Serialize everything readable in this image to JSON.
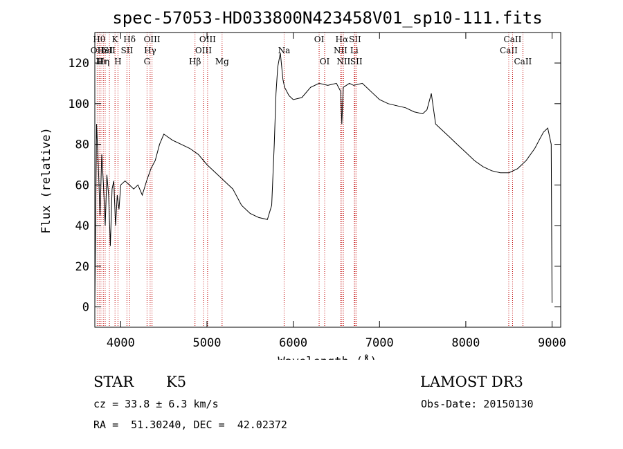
{
  "chart_data": {
    "type": "line",
    "title": "spec-57053-HD033800N423458V01_sp10-111.fits",
    "xlabel": "Wavelength (Å)",
    "ylabel": "Flux (relative)",
    "xlim": [
      3700,
      9100
    ],
    "ylim": [
      -10,
      135
    ],
    "xticks": [
      4000,
      5000,
      6000,
      7000,
      8000,
      9000
    ],
    "yticks": [
      0,
      20,
      40,
      60,
      80,
      100,
      120
    ],
    "line_color": "#000000",
    "marker_color": "#c00000",
    "series": [
      {
        "x": [
          3700,
          3720,
          3740,
          3760,
          3780,
          3800,
          3820,
          3840,
          3860,
          3880,
          3900,
          3920,
          3940,
          3960,
          3980,
          4000,
          4050,
          4100,
          4150,
          4200,
          4250,
          4300,
          4350,
          4400,
          4450,
          4500,
          4600,
          4700,
          4800,
          4900,
          5000,
          5100,
          5200,
          5300,
          5400,
          5500,
          5600,
          5700,
          5750,
          5780,
          5800,
          5820,
          5850,
          5880,
          5900,
          5950,
          6000,
          6100,
          6200,
          6300,
          6400,
          6500,
          6550,
          6563,
          6580,
          6650,
          6700,
          6800,
          6900,
          7000,
          7100,
          7200,
          7300,
          7400,
          7500,
          7550,
          7600,
          7650,
          7700,
          7800,
          7900,
          8000,
          8100,
          8200,
          8300,
          8400,
          8500,
          8600,
          8700,
          8800,
          8850,
          8900,
          8950,
          8990,
          9000
        ],
        "y": [
          0,
          90,
          70,
          45,
          75,
          60,
          40,
          65,
          55,
          30,
          58,
          62,
          40,
          55,
          48,
          60,
          62,
          60,
          58,
          60,
          55,
          62,
          68,
          72,
          80,
          85,
          82,
          80,
          78,
          75,
          70,
          66,
          62,
          58,
          50,
          46,
          44,
          43,
          50,
          80,
          105,
          118,
          125,
          112,
          108,
          104,
          102,
          103,
          108,
          110,
          109,
          110,
          106,
          90,
          108,
          110,
          109,
          110,
          106,
          102,
          100,
          99,
          98,
          96,
          95,
          97,
          105,
          90,
          88,
          84,
          80,
          76,
          72,
          69,
          67,
          66,
          66,
          68,
          72,
          78,
          82,
          86,
          88,
          80,
          2
        ]
      }
    ],
    "markers": [
      {
        "x": 3727,
        "row": 1,
        "label": "OII"
      },
      {
        "x": 3750,
        "row": 0,
        "label": "Hθ"
      },
      {
        "x": 3771,
        "row": 2,
        "label": "Hι"
      },
      {
        "x": 3798,
        "row": 2,
        "label": "Hη"
      },
      {
        "x": 3820,
        "row": 1,
        "label": "HeI"
      },
      {
        "x": 3869,
        "row": 1,
        "label": "SII"
      },
      {
        "x": 3934,
        "row": 0,
        "label": "K"
      },
      {
        "x": 3968,
        "row": 2,
        "label": "H"
      },
      {
        "x": 4102,
        "row": 0,
        "label": "Hδ"
      },
      {
        "x": 4072,
        "row": 1,
        "label": "SII"
      },
      {
        "x": 4305,
        "row": 2,
        "label": "G"
      },
      {
        "x": 4341,
        "row": 1,
        "label": "Hγ"
      },
      {
        "x": 4363,
        "row": 0,
        "label": "OIII"
      },
      {
        "x": 4861,
        "row": 2,
        "label": "Hβ"
      },
      {
        "x": 4959,
        "row": 1,
        "label": "OIII"
      },
      {
        "x": 5007,
        "row": 0,
        "label": "OIII"
      },
      {
        "x": 5175,
        "row": 2,
        "label": "Mg"
      },
      {
        "x": 5894,
        "row": 1,
        "label": "Na"
      },
      {
        "x": 6300,
        "row": 0,
        "label": "OI"
      },
      {
        "x": 6364,
        "row": 2,
        "label": "OI"
      },
      {
        "x": 6548,
        "row": 1,
        "label": "NII"
      },
      {
        "x": 6563,
        "row": 0,
        "label": "Hα"
      },
      {
        "x": 6583,
        "row": 2,
        "label": "NII"
      },
      {
        "x": 6707,
        "row": 1,
        "label": "Li"
      },
      {
        "x": 6716,
        "row": 0,
        "label": "SII"
      },
      {
        "x": 6731,
        "row": 2,
        "label": "SII"
      },
      {
        "x": 8498,
        "row": 1,
        "label": "CaII"
      },
      {
        "x": 8542,
        "row": 0,
        "label": "CaII"
      },
      {
        "x": 8662,
        "row": 2,
        "label": "CaII"
      }
    ]
  },
  "info": {
    "class_label": "STAR",
    "subclass": "K5",
    "survey": "LAMOST DR3",
    "cz": "cz = 33.8 ± 6.3 km/s",
    "obs_date": "Obs-Date: 20150130",
    "radec": "RA =  51.30240, DEC =  42.02372"
  }
}
